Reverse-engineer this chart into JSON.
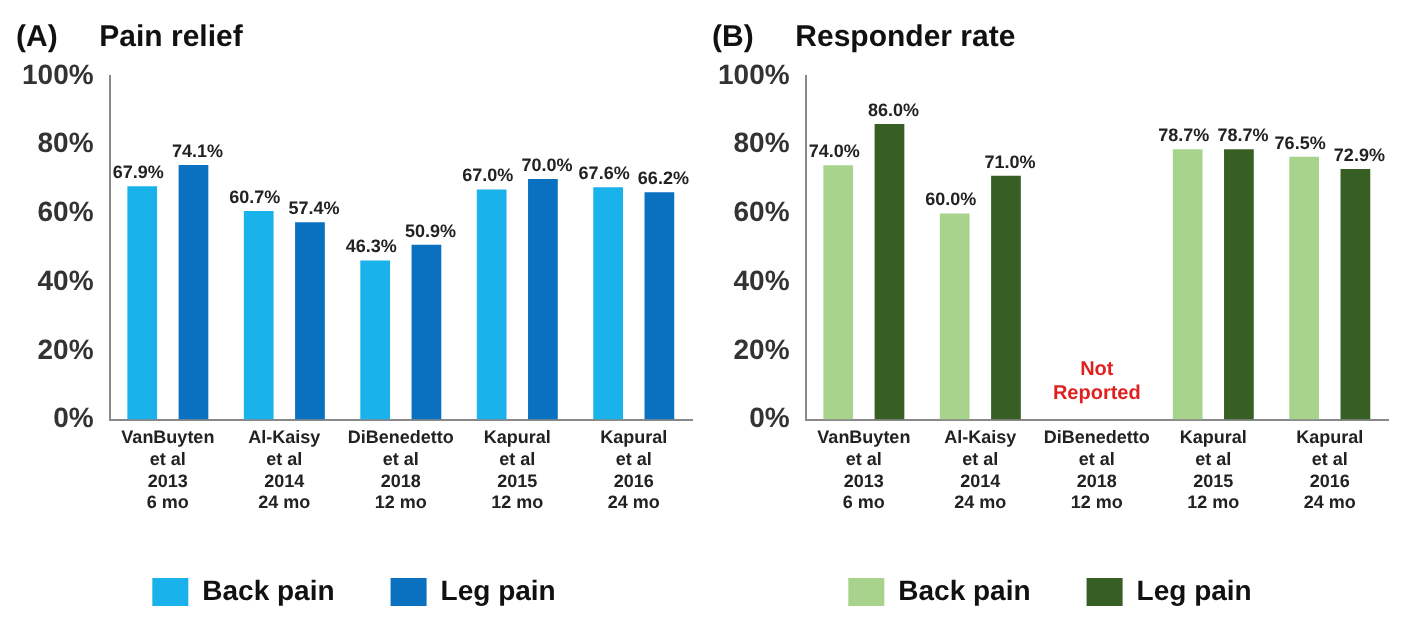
{
  "chart_data": [
    {
      "type": "bar",
      "title": "(A)     Pain relief",
      "categories": [
        "VanBuyten\net al\n2013\n6 mo",
        "Al-Kaisy\net al\n2014\n24 mo",
        "DiBenedetto\net al\n2018\n12 mo",
        "Kapural\net al\n2015\n12 mo",
        "Kapural\net al\n2016\n24 mo"
      ],
      "series": [
        {
          "name": "Back pain",
          "color": "#1ab2ea",
          "values": [
            67.9,
            60.7,
            46.3,
            67.0,
            67.6
          ],
          "value_labels": [
            "67.9%",
            "60.7%",
            "46.3%",
            "67.0%",
            "67.6%"
          ]
        },
        {
          "name": "Leg pain",
          "color": "#0a70c0",
          "values": [
            74.1,
            57.4,
            50.9,
            70.0,
            66.2
          ],
          "value_labels": [
            "74.1%",
            "57.4%",
            "50.9%",
            "70.0%",
            "66.2%"
          ]
        }
      ],
      "ylim": [
        0,
        100
      ],
      "yticks": [
        {
          "value": 0,
          "label": "0%"
        },
        {
          "value": 20,
          "label": "20%"
        },
        {
          "value": 40,
          "label": "40%"
        },
        {
          "value": 60,
          "label": "60%"
        },
        {
          "value": 80,
          "label": "80%"
        },
        {
          "value": 100,
          "label": "100%"
        }
      ],
      "grid": false,
      "legend": "bottom"
    },
    {
      "type": "bar",
      "title": "(B)     Responder rate",
      "categories": [
        "VanBuyten\net al\n2013\n6 mo",
        "Al-Kaisy\net al\n2014\n24 mo",
        "DiBenedetto\net al\n2018\n12 mo",
        "Kapural\net al\n2015\n12 mo",
        "Kapural\net al\n2016\n24 mo"
      ],
      "series": [
        {
          "name": "Back pain",
          "color": "#a8d38c",
          "values": [
            74.0,
            60.0,
            null,
            78.7,
            76.5
          ],
          "value_labels": [
            "74.0%",
            "60.0%",
            null,
            "78.7%",
            "76.5%"
          ]
        },
        {
          "name": "Leg pain",
          "color": "#375f23",
          "values": [
            86.0,
            71.0,
            null,
            78.7,
            72.9
          ],
          "value_labels": [
            "86.0%",
            "71.0%",
            null,
            "78.7%",
            "72.9%"
          ]
        }
      ],
      "ylim": [
        0,
        100
      ],
      "yticks": [
        {
          "value": 0,
          "label": "0%"
        },
        {
          "value": 20,
          "label": "20%"
        },
        {
          "value": 40,
          "label": "40%"
        },
        {
          "value": 60,
          "label": "60%"
        },
        {
          "value": 80,
          "label": "80%"
        },
        {
          "value": 100,
          "label": "100%"
        }
      ],
      "annotations": [
        "Not\nReported"
      ],
      "grid": false,
      "legend": "bottom"
    }
  ]
}
